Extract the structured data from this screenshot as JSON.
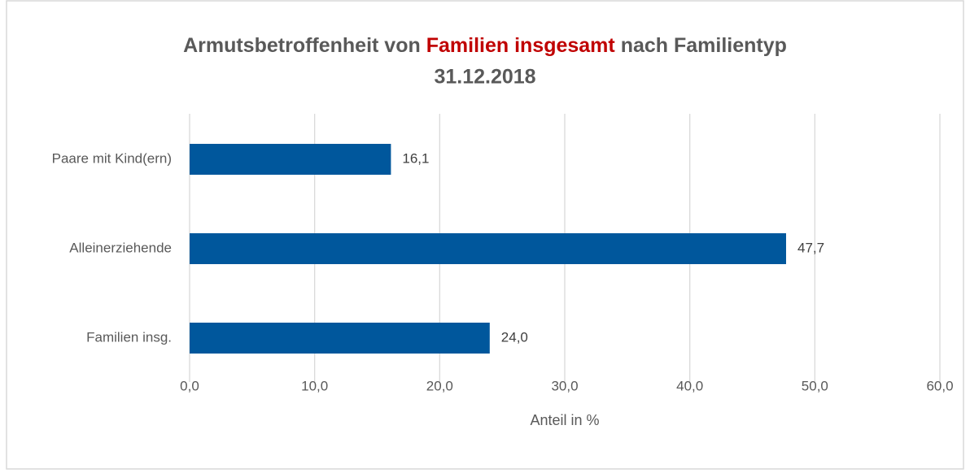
{
  "chart_data": {
    "type": "hbar",
    "title": [
      "Armutsbetroffenheit von",
      "Familien insgesamt",
      "nach Familientyp"
    ],
    "title_highlight_color": "#c00000",
    "subtitle": "31.12.2018",
    "categories": [
      "Paare mit Kind(ern)",
      "Alleinerziehende",
      "Familien insg."
    ],
    "values": [
      16.1,
      47.7,
      24.0
    ],
    "value_labels": [
      "16,1",
      "47,7",
      "24,0"
    ],
    "color": "#00579c",
    "xlabel": "Anteil in %",
    "xlim": [
      0,
      60
    ],
    "xticks": [
      {
        "value": 0,
        "label": "0,0"
      },
      {
        "value": 10,
        "label": "10,0"
      },
      {
        "value": 20,
        "label": "20,0"
      },
      {
        "value": 30,
        "label": "30,0"
      },
      {
        "value": 40,
        "label": "40,0"
      },
      {
        "value": 50,
        "label": "50,0"
      },
      {
        "value": 60,
        "label": "60,0"
      }
    ],
    "grid": true
  }
}
